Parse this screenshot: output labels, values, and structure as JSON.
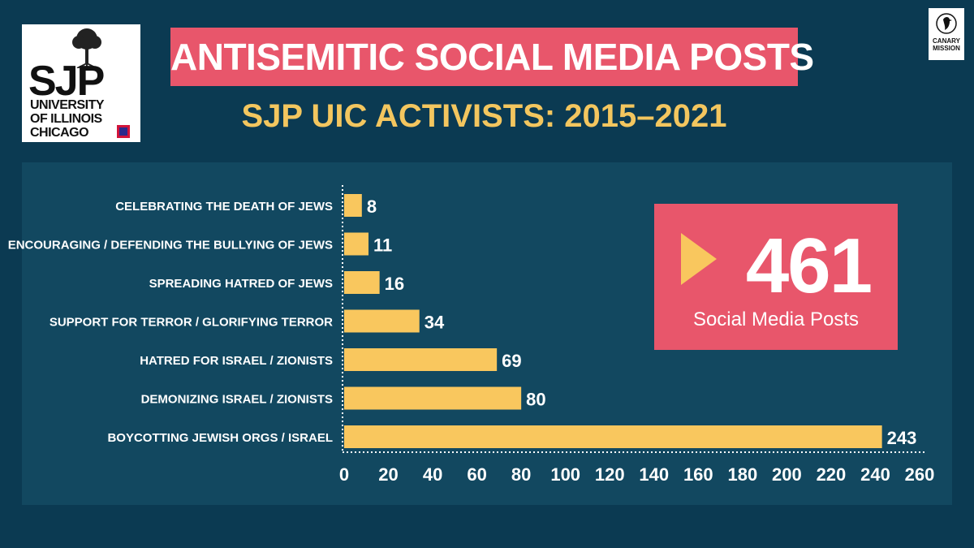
{
  "logo": {
    "name": "SJP",
    "line1": "UNIVERSITY",
    "line2": "OF ILLINOIS",
    "line3": "CHICAGO"
  },
  "header": {
    "title": "ANTISEMITIC SOCIAL MEDIA POSTS",
    "subtitle": "SJP UIC ACTIVISTS: 2015–2021"
  },
  "brand": {
    "line1": "CANARY",
    "line2": "MISSION"
  },
  "summary": {
    "total": "461",
    "label": "Social Media Posts"
  },
  "colors": {
    "background": "#0b3a52",
    "panel": "#124860",
    "bar": "#f9c75e",
    "accent": "#e8566b",
    "title_text": "#f3c65f"
  },
  "chart_data": {
    "type": "bar",
    "orientation": "horizontal",
    "title": "ANTISEMITIC SOCIAL MEDIA POSTS",
    "subtitle": "SJP UIC ACTIVISTS: 2015–2021",
    "categories": [
      "CELEBRATING THE DEATH OF JEWS",
      "ENCOURAGING / DEFENDING THE BULLYING OF JEWS",
      "SPREADING HATRED OF JEWS",
      "SUPPORT FOR TERROR / GLORIFYING TERROR",
      "HATRED FOR ISRAEL / ZIONISTS",
      "DEMONIZING ISRAEL / ZIONISTS",
      "BOYCOTTING JEWISH ORGS / ISRAEL"
    ],
    "values": [
      8,
      11,
      16,
      34,
      69,
      80,
      243
    ],
    "xlim": [
      0,
      260
    ],
    "xticks": [
      0,
      20,
      40,
      60,
      80,
      100,
      120,
      140,
      160,
      180,
      200,
      220,
      240,
      260
    ],
    "xlabel": "",
    "ylabel": "",
    "grid": false
  }
}
